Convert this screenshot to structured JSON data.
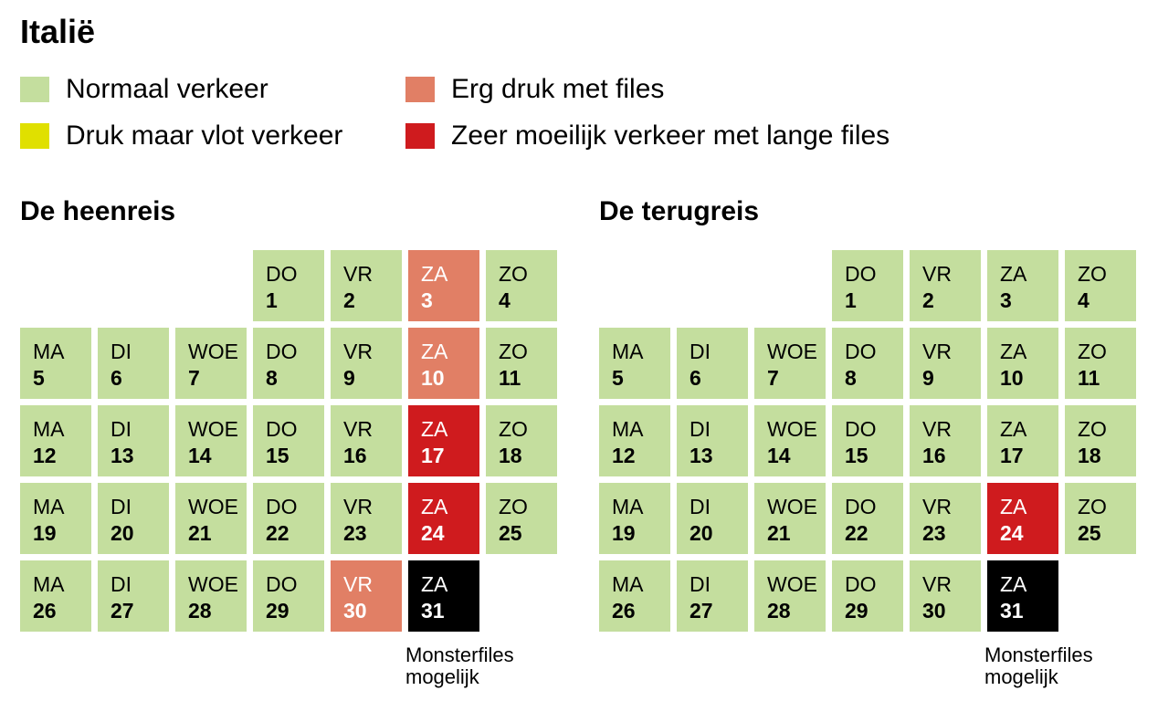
{
  "title": "Italië",
  "colors": {
    "normal": "#c4de9e",
    "druk": "#e0e000",
    "erg": "#e17f65",
    "zeer": "#cf1b1e",
    "monster": "#000000"
  },
  "legend": [
    {
      "level": "normal",
      "label": "Normaal verkeer"
    },
    {
      "level": "druk",
      "label": "Druk maar vlot verkeer"
    },
    {
      "level": "erg",
      "label": "Erg druk met files"
    },
    {
      "level": "zeer",
      "label": "Zeer moeilijk verkeer met lange files"
    }
  ],
  "calendars": [
    {
      "title": "De heenreis",
      "days": [
        {
          "day": "DO",
          "num": "1",
          "level": "normal"
        },
        {
          "day": "VR",
          "num": "2",
          "level": "normal"
        },
        {
          "day": "ZA",
          "num": "3",
          "level": "erg"
        },
        {
          "day": "ZO",
          "num": "4",
          "level": "normal"
        },
        {
          "day": "MA",
          "num": "5",
          "level": "normal"
        },
        {
          "day": "DI",
          "num": "6",
          "level": "normal"
        },
        {
          "day": "WOE",
          "num": "7",
          "level": "normal"
        },
        {
          "day": "DO",
          "num": "8",
          "level": "normal"
        },
        {
          "day": "VR",
          "num": "9",
          "level": "normal"
        },
        {
          "day": "ZA",
          "num": "10",
          "level": "erg"
        },
        {
          "day": "ZO",
          "num": "11",
          "level": "normal"
        },
        {
          "day": "MA",
          "num": "12",
          "level": "normal"
        },
        {
          "day": "DI",
          "num": "13",
          "level": "normal"
        },
        {
          "day": "WOE",
          "num": "14",
          "level": "normal"
        },
        {
          "day": "DO",
          "num": "15",
          "level": "normal"
        },
        {
          "day": "VR",
          "num": "16",
          "level": "normal"
        },
        {
          "day": "ZA",
          "num": "17",
          "level": "zeer"
        },
        {
          "day": "ZO",
          "num": "18",
          "level": "normal"
        },
        {
          "day": "MA",
          "num": "19",
          "level": "normal"
        },
        {
          "day": "DI",
          "num": "20",
          "level": "normal"
        },
        {
          "day": "WOE",
          "num": "21",
          "level": "normal"
        },
        {
          "day": "DO",
          "num": "22",
          "level": "normal"
        },
        {
          "day": "VR",
          "num": "23",
          "level": "normal"
        },
        {
          "day": "ZA",
          "num": "24",
          "level": "zeer"
        },
        {
          "day": "ZO",
          "num": "25",
          "level": "normal"
        },
        {
          "day": "MA",
          "num": "26",
          "level": "normal"
        },
        {
          "day": "DI",
          "num": "27",
          "level": "normal"
        },
        {
          "day": "WOE",
          "num": "28",
          "level": "normal"
        },
        {
          "day": "DO",
          "num": "29",
          "level": "normal"
        },
        {
          "day": "VR",
          "num": "30",
          "level": "erg"
        },
        {
          "day": "ZA",
          "num": "31",
          "level": "monster"
        }
      ],
      "note": [
        "Monsterfiles",
        "mogelijk"
      ]
    },
    {
      "title": "De terugreis",
      "days": [
        {
          "day": "DO",
          "num": "1",
          "level": "normal"
        },
        {
          "day": "VR",
          "num": "2",
          "level": "normal"
        },
        {
          "day": "ZA",
          "num": "3",
          "level": "normal"
        },
        {
          "day": "ZO",
          "num": "4",
          "level": "normal"
        },
        {
          "day": "MA",
          "num": "5",
          "level": "normal"
        },
        {
          "day": "DI",
          "num": "6",
          "level": "normal"
        },
        {
          "day": "WOE",
          "num": "7",
          "level": "normal"
        },
        {
          "day": "DO",
          "num": "8",
          "level": "normal"
        },
        {
          "day": "VR",
          "num": "9",
          "level": "normal"
        },
        {
          "day": "ZA",
          "num": "10",
          "level": "normal"
        },
        {
          "day": "ZO",
          "num": "11",
          "level": "normal"
        },
        {
          "day": "MA",
          "num": "12",
          "level": "normal"
        },
        {
          "day": "DI",
          "num": "13",
          "level": "normal"
        },
        {
          "day": "WOE",
          "num": "14",
          "level": "normal"
        },
        {
          "day": "DO",
          "num": "15",
          "level": "normal"
        },
        {
          "day": "VR",
          "num": "16",
          "level": "normal"
        },
        {
          "day": "ZA",
          "num": "17",
          "level": "normal"
        },
        {
          "day": "ZO",
          "num": "18",
          "level": "normal"
        },
        {
          "day": "MA",
          "num": "19",
          "level": "normal"
        },
        {
          "day": "DI",
          "num": "20",
          "level": "normal"
        },
        {
          "day": "WOE",
          "num": "21",
          "level": "normal"
        },
        {
          "day": "DO",
          "num": "22",
          "level": "normal"
        },
        {
          "day": "VR",
          "num": "23",
          "level": "normal"
        },
        {
          "day": "ZA",
          "num": "24",
          "level": "zeer"
        },
        {
          "day": "ZO",
          "num": "25",
          "level": "normal"
        },
        {
          "day": "MA",
          "num": "26",
          "level": "normal"
        },
        {
          "day": "DI",
          "num": "27",
          "level": "normal"
        },
        {
          "day": "WOE",
          "num": "28",
          "level": "normal"
        },
        {
          "day": "DO",
          "num": "29",
          "level": "normal"
        },
        {
          "day": "VR",
          "num": "30",
          "level": "normal"
        },
        {
          "day": "ZA",
          "num": "31",
          "level": "monster"
        }
      ],
      "note": [
        "Monsterfiles",
        "mogelijk"
      ]
    }
  ]
}
